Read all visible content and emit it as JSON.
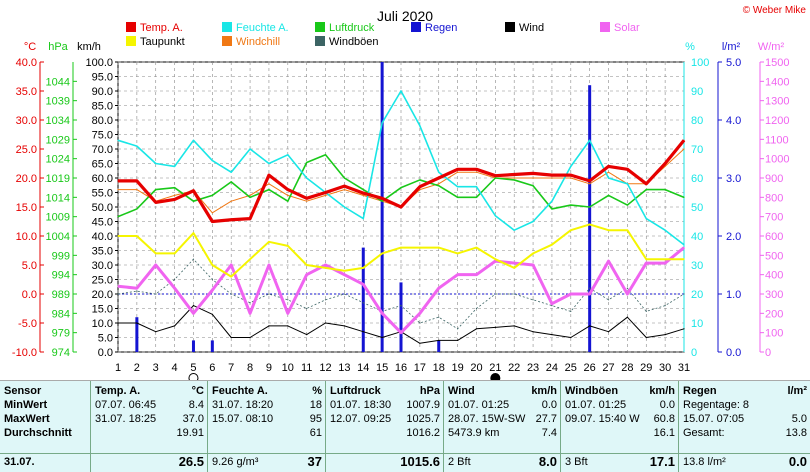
{
  "title": "Juli 2020",
  "copyright": "© Weber Mike",
  "legend": [
    {
      "label": "Temp. A.",
      "color": "#e60000"
    },
    {
      "label": "Feuchte A.",
      "color": "#19e6e6"
    },
    {
      "label": "Luftdruck",
      "color": "#19c819"
    },
    {
      "label": "Regen",
      "color": "#1414d2"
    },
    {
      "label": "Wind",
      "color": "#000000"
    },
    {
      "label": "Solar",
      "color": "#f064f0"
    },
    {
      "label": "Taupunkt",
      "color": "#f5f500"
    },
    {
      "label": "Windchill",
      "color": "#f07814"
    },
    {
      "label": "Windböen",
      "color": "#3c6464"
    }
  ],
  "axis_units": {
    "temp": "°C",
    "pressure": "hPa",
    "wind": "km/h",
    "humidity": "%",
    "rain": "l/m²",
    "solar": "W/m²"
  },
  "chart_data": {
    "type": "line",
    "x": [
      1,
      2,
      3,
      4,
      5,
      6,
      7,
      8,
      9,
      10,
      11,
      12,
      13,
      14,
      15,
      16,
      17,
      18,
      19,
      20,
      21,
      22,
      23,
      24,
      25,
      26,
      27,
      28,
      29,
      30,
      31
    ],
    "x_ticks": [
      "1",
      "2",
      "3",
      "4",
      "5",
      "6",
      "7",
      "8",
      "9",
      "10",
      "11",
      "12",
      "13",
      "14",
      "15",
      "16",
      "17",
      "18",
      "19",
      "20",
      "21",
      "22",
      "23",
      "24",
      "25",
      "26",
      "27",
      "28",
      "29",
      "30",
      "31"
    ],
    "ylim_wind": [
      0,
      100
    ],
    "ylim_temp": [
      -10,
      40
    ],
    "ylim_pressure": [
      974,
      1049
    ],
    "ylim_humidity": [
      0,
      100
    ],
    "ylim_rain": [
      0,
      5
    ],
    "ylim_solar": [
      0,
      1500
    ],
    "y_ticks_wind": [
      "0.0",
      "5.0",
      "10.0",
      "15.0",
      "20.0",
      "25.0",
      "30.0",
      "35.0",
      "40.0",
      "45.0",
      "50.0",
      "55.0",
      "60.0",
      "65.0",
      "70.0",
      "75.0",
      "80.0",
      "85.0",
      "90.0",
      "95.0",
      "100.0"
    ],
    "y_ticks_temp": [
      "-10.0",
      "-5.0",
      "0.0",
      "5.0",
      "10.0",
      "15.0",
      "20.0",
      "25.0",
      "30.0",
      "35.0",
      "40.0"
    ],
    "y_ticks_pressure": [
      "974",
      "979",
      "984",
      "989",
      "994",
      "999",
      "1004",
      "1009",
      "1014",
      "1019",
      "1024",
      "1029",
      "1034",
      "1039",
      "1044"
    ],
    "y_ticks_humidity": [
      "0",
      "10",
      "20",
      "30",
      "40",
      "50",
      "60",
      "70",
      "80",
      "90",
      "100"
    ],
    "y_ticks_rain": [
      "0.0",
      "1.0",
      "2.0",
      "3.0",
      "4.0",
      "5.0"
    ],
    "y_ticks_solar": [
      "0",
      "100",
      "200",
      "300",
      "400",
      "500",
      "600",
      "700",
      "800",
      "900",
      "1000",
      "1100",
      "1200",
      "1300",
      "1400",
      "1500"
    ],
    "series": [
      {
        "name": "Temp. A.",
        "axis": "temp",
        "values": [
          19.5,
          19.5,
          15.8,
          16.3,
          17.8,
          12.5,
          12.8,
          13,
          20.5,
          18,
          16.5,
          17.5,
          18.6,
          17.4,
          16.5,
          15,
          18.5,
          20,
          21.5,
          21.5,
          20.4,
          20.6,
          20.8,
          20.5,
          20.5,
          19.5,
          22,
          21.5,
          19,
          22.5,
          26.5
        ]
      },
      {
        "name": "Feuchte A.",
        "axis": "humidity",
        "values": [
          73,
          71,
          65,
          64,
          73,
          66,
          62,
          70,
          65,
          68,
          60,
          55,
          50,
          46,
          79,
          90,
          78,
          62,
          57,
          57,
          47,
          42,
          45,
          52,
          64,
          73,
          60,
          58,
          46,
          42,
          37
        ]
      },
      {
        "name": "Luftdruck",
        "axis": "pressure",
        "values": [
          1009,
          1011,
          1016,
          1016.5,
          1013,
          1014.5,
          1018,
          1014,
          1016,
          1013,
          1023,
          1025,
          1019,
          1016,
          1013,
          1016.5,
          1018.5,
          1017,
          1014,
          1014,
          1019,
          1018.5,
          1017,
          1011,
          1012,
          1011.5,
          1014.5,
          1012,
          1016,
          1016,
          1014
        ]
      },
      {
        "name": "Taupunkt",
        "axis": "temp",
        "values": [
          10,
          10,
          7,
          7,
          10.5,
          5,
          3,
          6,
          9,
          8.3,
          5,
          4.5,
          4,
          4.5,
          7,
          8,
          8,
          8,
          7,
          8,
          6,
          4.5,
          7,
          8.5,
          11,
          12,
          11,
          11,
          6,
          6,
          6
        ]
      },
      {
        "name": "Windchill",
        "axis": "temp",
        "values": [
          18,
          18,
          16,
          17,
          17.8,
          14,
          16,
          17,
          19,
          17,
          16,
          17,
          18,
          17,
          16,
          15,
          18,
          19,
          21,
          21,
          20,
          20,
          20,
          20,
          20,
          19,
          21,
          19,
          19,
          22,
          25
        ]
      },
      {
        "name": "Wind",
        "axis": "wind",
        "values": [
          10,
          10,
          7,
          9,
          16,
          13,
          5,
          5,
          9,
          9,
          6,
          10,
          9,
          7,
          5,
          7,
          3,
          4,
          4,
          8,
          8.5,
          9,
          7,
          6,
          5,
          9,
          7,
          12,
          5,
          6,
          8
        ]
      },
      {
        "name": "Windböen",
        "axis": "wind",
        "values": [
          20,
          21,
          20,
          25,
          32,
          25,
          20,
          17,
          20,
          18,
          15,
          18,
          20,
          17,
          14,
          16,
          10,
          12,
          8,
          15,
          20,
          20,
          18,
          16,
          14,
          22,
          18,
          22,
          14,
          16,
          20
        ]
      },
      {
        "name": "Solar",
        "axis": "solar",
        "values": [
          340,
          330,
          450,
          330,
          200,
          320,
          450,
          200,
          450,
          200,
          400,
          450,
          400,
          350,
          200,
          100,
          200,
          330,
          400,
          400,
          470,
          460,
          450,
          250,
          300,
          300,
          470,
          300,
          460,
          460,
          540
        ]
      },
      {
        "name": "Regen",
        "axis": "rain",
        "type": "bar",
        "values": [
          0,
          0.6,
          0,
          0,
          0.2,
          0.2,
          0,
          0,
          0,
          0,
          0,
          0,
          0,
          1.8,
          5,
          1.2,
          0,
          0.2,
          0,
          0,
          0,
          0,
          0,
          0,
          0,
          4.6,
          0,
          0,
          0,
          0,
          0
        ]
      }
    ]
  },
  "table": {
    "cols": [
      {
        "header": "Sensor",
        "unit": "",
        "rows": [
          "MinWert",
          "MaxWert",
          "Durchschnitt"
        ],
        "foot": "31.07."
      },
      {
        "header": "Temp. A.",
        "unit": "°C",
        "rows": [
          [
            "07.07.  06:45",
            "8.4"
          ],
          [
            "31.07.  18:25",
            "37.0"
          ],
          [
            "",
            "19.91"
          ]
        ],
        "foot_left": "",
        "foot": "26.5"
      },
      {
        "header": "Feuchte A.",
        "unit": "%",
        "rows": [
          [
            "31.07.  18:20",
            "18"
          ],
          [
            "15.07.  08:10",
            "95"
          ],
          [
            "",
            "61"
          ]
        ],
        "foot_left": "9.26 g/m³",
        "foot": "37"
      },
      {
        "header": "Luftdruck",
        "unit": "hPa",
        "rows": [
          [
            "01.07.  18:30",
            "1007.9"
          ],
          [
            "12.07.  09:25",
            "1025.7"
          ],
          [
            "",
            "1016.2"
          ]
        ],
        "foot_left": "",
        "foot": "1015.6"
      },
      {
        "header": "Wind",
        "unit": "km/h",
        "rows": [
          [
            "01.07.  01:25",
            "0.0"
          ],
          [
            "28.07.  15W-SW",
            "27.7"
          ],
          [
            "5473.9 km",
            "7.4"
          ]
        ],
        "foot_left": "2 Bft",
        "foot": "8.0"
      },
      {
        "header": "Windböen",
        "unit": "km/h",
        "rows": [
          [
            "01.07.  01:25",
            "0.0"
          ],
          [
            "09.07.  15:40  W",
            "60.8"
          ],
          [
            "",
            "16.1"
          ]
        ],
        "foot_left": "3 Bft",
        "foot": "17.1"
      },
      {
        "header": "Regen",
        "unit": "l/m²",
        "rows": [
          [
            "Regentage: 8",
            ""
          ],
          [
            "15.07.  07:05",
            "5.0"
          ],
          [
            "Gesamt:",
            "13.8"
          ]
        ],
        "foot_left": "13.8 l/m²",
        "foot": "0.0"
      }
    ]
  }
}
